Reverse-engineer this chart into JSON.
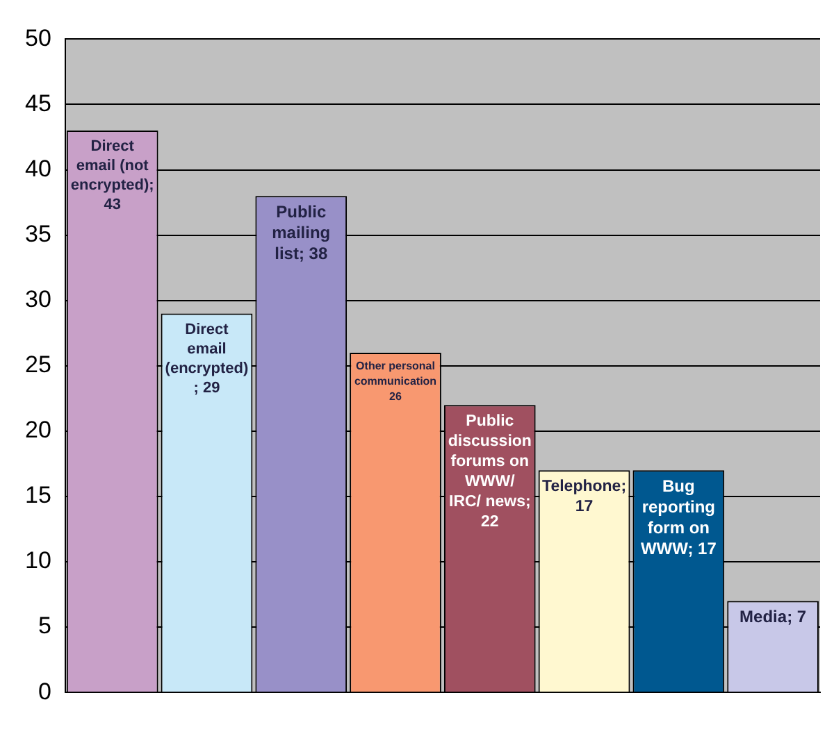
{
  "chart_data": {
    "type": "bar",
    "categories": [
      null,
      null,
      null,
      null,
      null,
      null,
      null,
      null
    ],
    "values": [
      43,
      29,
      38,
      26,
      22,
      17,
      17,
      7
    ],
    "colors": [
      "#c8a0c8",
      "#c8e8f8",
      "#9890c8",
      "#f89870",
      "#a05060",
      "#fff8d0",
      "#005890",
      "#c8c8e8"
    ],
    "value_labels": [
      "Direct email (not encrypted); 43",
      "Direct email (encrypted) ; 29",
      "Public mailing list; 38",
      "Other personal communication 26",
      "Public discussion forums on WWW/ IRC/ news; 22",
      "Telephone; 17",
      "Bug reporting form on WWW; 17",
      "Media; 7"
    ],
    "ylim": [
      0,
      50
    ],
    "yticks": [
      0,
      5,
      10,
      15,
      20,
      25,
      30,
      35,
      40,
      45,
      50
    ],
    "grid": "y",
    "legend": false
  }
}
